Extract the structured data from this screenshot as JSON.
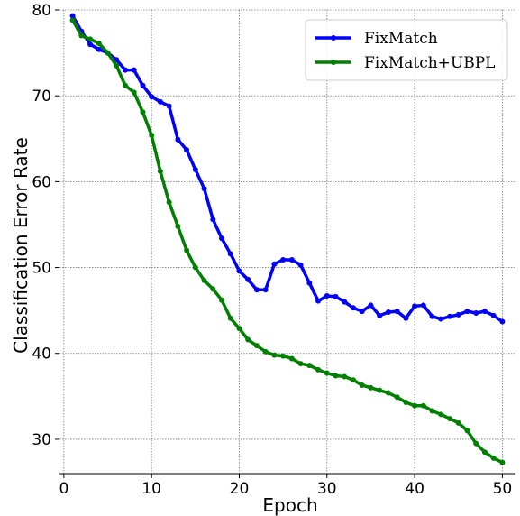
{
  "chart_data": {
    "type": "line",
    "xlabel": "Epoch",
    "ylabel": "Classification Error Rate",
    "xlim": [
      -0.5,
      51.5
    ],
    "ylim": [
      26,
      80
    ],
    "xticks": [
      0,
      10,
      20,
      30,
      40,
      50
    ],
    "yticks": [
      30,
      40,
      50,
      60,
      70,
      80
    ],
    "grid": true,
    "legend_position": "top-right",
    "x": [
      1,
      2,
      3,
      4,
      5,
      6,
      7,
      8,
      9,
      10,
      11,
      12,
      13,
      14,
      15,
      16,
      17,
      18,
      19,
      20,
      21,
      22,
      23,
      24,
      25,
      26,
      27,
      28,
      29,
      30,
      31,
      32,
      33,
      34,
      35,
      36,
      37,
      38,
      39,
      40,
      41,
      42,
      43,
      44,
      45,
      46,
      47,
      48,
      49,
      50
    ],
    "series": [
      {
        "name": "FixMatch",
        "color": "#0000ff",
        "values": [
          79.3,
          77.5,
          76.0,
          75.4,
          75.0,
          74.2,
          73.0,
          73.0,
          71.2,
          69.9,
          69.3,
          68.8,
          64.9,
          63.7,
          61.4,
          59.2,
          55.6,
          53.4,
          51.6,
          49.6,
          48.6,
          47.4,
          47.4,
          50.4,
          50.9,
          50.9,
          50.3,
          48.2,
          46.1,
          46.7,
          46.6,
          46.0,
          45.3,
          44.9,
          45.6,
          44.4,
          44.8,
          44.9,
          44.1,
          45.5,
          45.6,
          44.3,
          44.0,
          44.3,
          44.5,
          44.9,
          44.7,
          44.9,
          44.4,
          43.7
        ]
      },
      {
        "name": "FixMatch+UBPL",
        "color": "#008000",
        "values": [
          78.8,
          77.0,
          76.6,
          76.1,
          75.0,
          73.5,
          71.2,
          70.4,
          68.1,
          65.4,
          61.2,
          57.6,
          54.8,
          52.0,
          50.0,
          48.5,
          47.5,
          46.2,
          44.1,
          42.9,
          41.6,
          40.9,
          40.2,
          39.8,
          39.7,
          39.4,
          38.8,
          38.6,
          38.1,
          37.7,
          37.4,
          37.3,
          36.9,
          36.3,
          36.0,
          35.7,
          35.4,
          34.9,
          34.3,
          33.9,
          33.9,
          33.3,
          32.9,
          32.4,
          31.9,
          31.0,
          29.5,
          28.5,
          27.8,
          27.3
        ]
      }
    ]
  }
}
